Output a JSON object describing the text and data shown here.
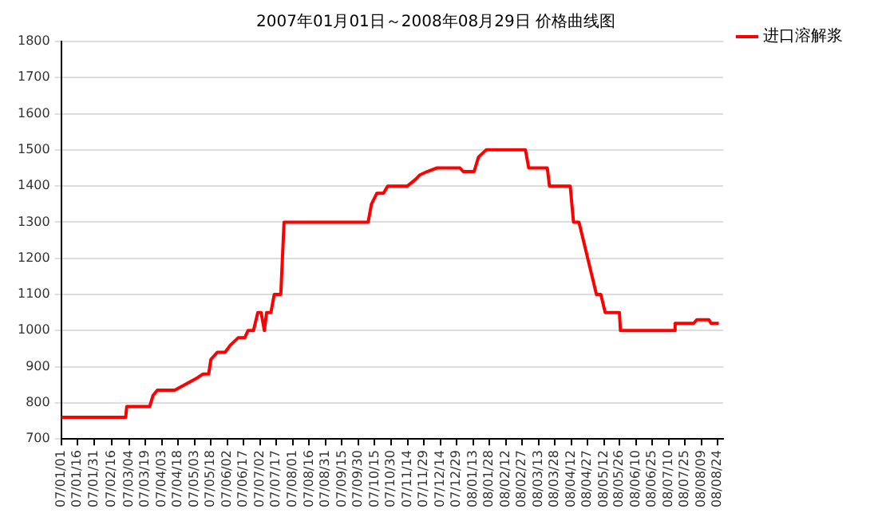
{
  "chart_data": {
    "type": "line",
    "title": "2007年01月01日～2008年08月29日 价格曲线图",
    "x": [
      "2007-01-01",
      "2007-03-01",
      "2007-03-02",
      "2007-03-23",
      "2007-03-26",
      "2007-03-30",
      "2007-04-15",
      "2007-05-06",
      "2007-05-11",
      "2007-05-16",
      "2007-05-18",
      "2007-05-24",
      "2007-05-31",
      "2007-06-05",
      "2007-06-12",
      "2007-06-18",
      "2007-06-21",
      "2007-06-26",
      "2007-06-30",
      "2007-07-03",
      "2007-07-06",
      "2007-07-08",
      "2007-07-12",
      "2007-07-15",
      "2007-07-21",
      "2007-07-24",
      "2007-10-09",
      "2007-10-12",
      "2007-10-17",
      "2007-10-23",
      "2007-10-27",
      "2007-11-14",
      "2007-11-22",
      "2007-11-25",
      "2007-12-02",
      "2007-12-11",
      "2008-01-01",
      "2008-01-04",
      "2008-01-14",
      "2008-01-18",
      "2008-01-25",
      "2008-03-01",
      "2008-03-04",
      "2008-03-21",
      "2008-03-23",
      "2008-04-11",
      "2008-04-14",
      "2008-04-19",
      "2008-04-23",
      "2008-04-27",
      "2008-05-01",
      "2008-05-05",
      "2008-05-09",
      "2008-05-13",
      "2008-05-26",
      "2008-05-27",
      "2008-07-15",
      "2008-07-16",
      "2008-08-02",
      "2008-08-05",
      "2008-08-16",
      "2008-08-18",
      "2008-08-25"
    ],
    "series": [
      {
        "name": "进口溶解浆",
        "color": "#ff0000",
        "values": [
          760,
          760,
          790,
          790,
          820,
          835,
          835,
          870,
          880,
          880,
          920,
          940,
          940,
          960,
          980,
          980,
          1000,
          1000,
          1050,
          1050,
          1000,
          1050,
          1050,
          1100,
          1100,
          1300,
          1300,
          1350,
          1380,
          1380,
          1400,
          1400,
          1420,
          1430,
          1440,
          1450,
          1450,
          1440,
          1440,
          1480,
          1500,
          1500,
          1450,
          1450,
          1400,
          1400,
          1300,
          1300,
          1250,
          1200,
          1150,
          1100,
          1100,
          1050,
          1050,
          1000,
          1000,
          1020,
          1020,
          1030,
          1030,
          1020,
          1020
        ]
      }
    ],
    "xlim": [
      "2007-01-01",
      "2008-08-29"
    ],
    "xticks": [
      {
        "value": "2007-01-01",
        "label": "07/01/01"
      },
      {
        "value": "2007-01-16",
        "label": "07/01/16"
      },
      {
        "value": "2007-01-31",
        "label": "07/01/31"
      },
      {
        "value": "2007-02-16",
        "label": "07/02/16"
      },
      {
        "value": "2007-03-04",
        "label": "07/03/04"
      },
      {
        "value": "2007-03-19",
        "label": "07/03/19"
      },
      {
        "value": "2007-04-03",
        "label": "07/04/03"
      },
      {
        "value": "2007-04-18",
        "label": "07/04/18"
      },
      {
        "value": "2007-05-03",
        "label": "07/05/03"
      },
      {
        "value": "2007-05-18",
        "label": "07/05/18"
      },
      {
        "value": "2007-06-02",
        "label": "07/06/02"
      },
      {
        "value": "2007-06-17",
        "label": "07/06/17"
      },
      {
        "value": "2007-07-02",
        "label": "07/07/02"
      },
      {
        "value": "2007-07-17",
        "label": "07/07/17"
      },
      {
        "value": "2007-08-01",
        "label": "07/08/01"
      },
      {
        "value": "2007-08-16",
        "label": "07/08/16"
      },
      {
        "value": "2007-08-31",
        "label": "07/08/31"
      },
      {
        "value": "2007-09-15",
        "label": "07/09/15"
      },
      {
        "value": "2007-09-30",
        "label": "07/09/30"
      },
      {
        "value": "2007-10-15",
        "label": "07/10/15"
      },
      {
        "value": "2007-10-30",
        "label": "07/10/30"
      },
      {
        "value": "2007-11-14",
        "label": "07/11/14"
      },
      {
        "value": "2007-11-29",
        "label": "07/11/29"
      },
      {
        "value": "2007-12-14",
        "label": "07/12/14"
      },
      {
        "value": "2007-12-29",
        "label": "07/12/29"
      },
      {
        "value": "2008-01-13",
        "label": "08/01/13"
      },
      {
        "value": "2008-01-28",
        "label": "08/01/28"
      },
      {
        "value": "2008-02-12",
        "label": "08/02/12"
      },
      {
        "value": "2008-02-27",
        "label": "08/02/27"
      },
      {
        "value": "2008-03-13",
        "label": "08/03/13"
      },
      {
        "value": "2008-03-28",
        "label": "08/03/28"
      },
      {
        "value": "2008-04-12",
        "label": "08/04/12"
      },
      {
        "value": "2008-04-27",
        "label": "08/04/27"
      },
      {
        "value": "2008-05-12",
        "label": "08/05/12"
      },
      {
        "value": "2008-05-26",
        "label": "08/05/26"
      },
      {
        "value": "2008-06-10",
        "label": "08/06/10"
      },
      {
        "value": "2008-06-25",
        "label": "08/06/25"
      },
      {
        "value": "2008-07-10",
        "label": "08/07/10"
      },
      {
        "value": "2008-07-25",
        "label": "08/07/25"
      },
      {
        "value": "2008-08-09",
        "label": "08/08/09"
      },
      {
        "value": "2008-08-24",
        "label": "08/08/24"
      }
    ],
    "ylim": [
      700,
      1800
    ],
    "yticks": [
      700,
      800,
      900,
      1000,
      1100,
      1200,
      1300,
      1400,
      1500,
      1600,
      1700,
      1800
    ],
    "grid": "y",
    "legend": "top right",
    "marker": "none",
    "line_style": "solid"
  }
}
